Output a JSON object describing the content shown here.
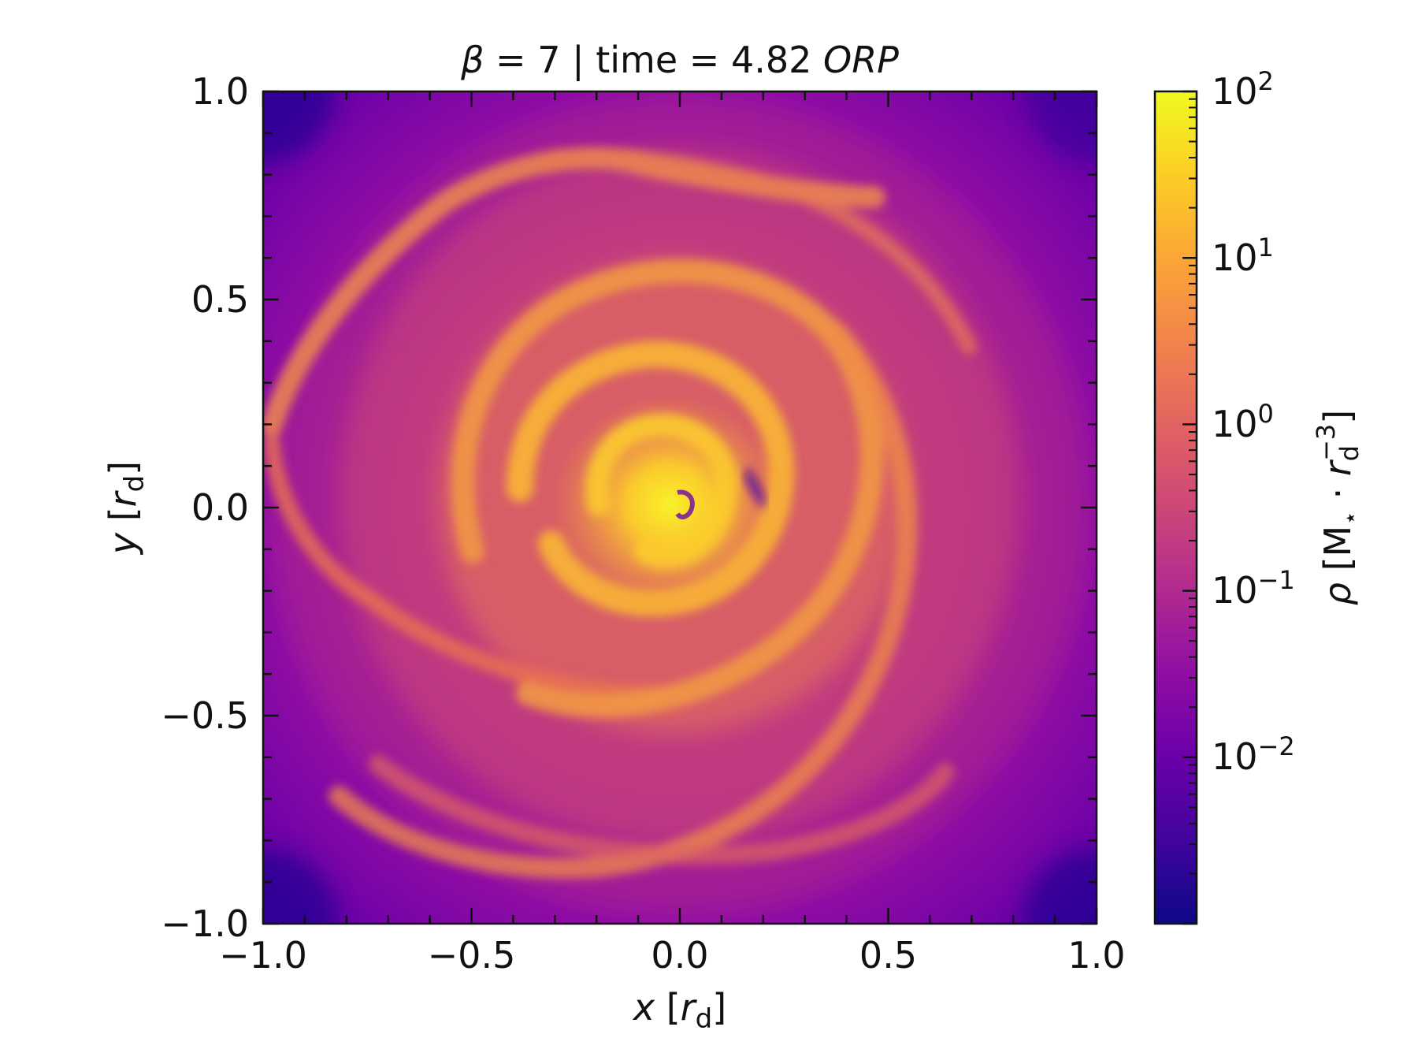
{
  "chart_data": {
    "type": "heatmap",
    "title": {
      "beta_symbol": "β",
      "beta_text": " = 7 | time = 4.82 ",
      "unit_italic": "ORP"
    },
    "xlabel": {
      "var": "x",
      "open": " [",
      "unit": "r",
      "unit_sub": "d",
      "close": "]"
    },
    "ylabel": {
      "var": "y",
      "open": " [",
      "unit": "r",
      "unit_sub": "d",
      "close": "]"
    },
    "xlim": [
      -1.0,
      1.0
    ],
    "ylim": [
      -1.0,
      1.0
    ],
    "xticks": [
      "−1.0",
      "−0.5",
      "0.0",
      "0.5",
      "1.0"
    ],
    "yticks": [
      "1.0",
      "0.5",
      "0.0",
      "−0.5",
      "−1.0"
    ],
    "colorbar": {
      "label": {
        "rho": "ρ",
        "open": " [M",
        "sub": "⋆",
        "mid": " · ",
        "r": "r",
        "r_sub": "d",
        "r_sup": "−3",
        "close": "]"
      },
      "scale": "log",
      "range": [
        0.001,
        100
      ],
      "ticks": [
        {
          "base": "10",
          "exp": "2"
        },
        {
          "base": "10",
          "exp": "1"
        },
        {
          "base": "10",
          "exp": "0"
        },
        {
          "base": "10",
          "exp": "−1"
        },
        {
          "base": "10",
          "exp": "−2"
        }
      ],
      "colormap": "plasma",
      "colormap_stops": [
        "#0d0887",
        "#41049d",
        "#6a00a8",
        "#8f0da4",
        "#b12a90",
        "#cc4778",
        "#e16462",
        "#f2844b",
        "#fca636",
        "#fcce25",
        "#f0f921"
      ]
    },
    "grid": false
  }
}
